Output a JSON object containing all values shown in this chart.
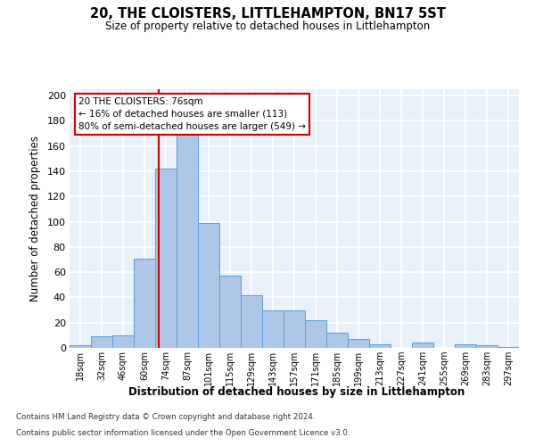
{
  "title_line1": "20, THE CLOISTERS, LITTLEHAMPTON, BN17 5ST",
  "subtitle": "Size of property relative to detached houses in Littlehampton",
  "xlabel": "Distribution of detached houses by size in Littlehampton",
  "ylabel": "Number of detached properties",
  "categories": [
    "18sqm",
    "32sqm",
    "46sqm",
    "60sqm",
    "74sqm",
    "87sqm",
    "101sqm",
    "115sqm",
    "129sqm",
    "143sqm",
    "157sqm",
    "171sqm",
    "185sqm",
    "199sqm",
    "213sqm",
    "227sqm",
    "241sqm",
    "255sqm",
    "269sqm",
    "283sqm",
    "297sqm"
  ],
  "values": [
    2,
    9,
    10,
    71,
    142,
    170,
    99,
    57,
    42,
    30,
    30,
    22,
    12,
    7,
    3,
    0,
    4,
    0,
    3,
    2,
    1
  ],
  "bar_color": "#aec6e8",
  "bar_edge_color": "#5b9bd5",
  "bg_color": "#e8f0fa",
  "grid_color": "#ffffff",
  "vline_color": "#cc0000",
  "annotation_text": "20 THE CLOISTERS: 76sqm\n← 16% of detached houses are smaller (113)\n80% of semi-detached houses are larger (549) →",
  "annotation_box_color": "#cc0000",
  "footnote_line1": "Contains HM Land Registry data © Crown copyright and database right 2024.",
  "footnote_line2": "Contains public sector information licensed under the Open Government Licence v3.0.",
  "ylim": [
    0,
    205
  ],
  "yticks": [
    0,
    20,
    40,
    60,
    80,
    100,
    120,
    140,
    160,
    180,
    200
  ]
}
